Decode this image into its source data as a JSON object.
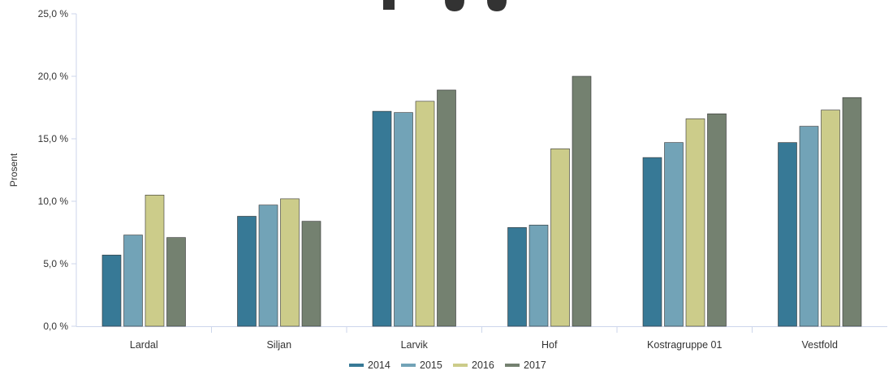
{
  "chart_data": {
    "type": "bar",
    "title": "",
    "ylabel": "Prosent",
    "xlabel": "",
    "ylim": [
      0,
      25
    ],
    "yticks": [
      "0,0 %",
      "5,0 %",
      "10,0 %",
      "15,0 %",
      "20,0 %",
      "25,0 %"
    ],
    "categories": [
      "Lardal",
      "Siljan",
      "Larvik",
      "Hof",
      "Kostragruppe 01",
      "Vestfold"
    ],
    "series": [
      {
        "name": "2014",
        "color": "#377996",
        "values": [
          5.7,
          8.8,
          17.2,
          7.9,
          13.5,
          14.7
        ]
      },
      {
        "name": "2015",
        "color": "#72a3b7",
        "values": [
          7.3,
          9.7,
          17.1,
          8.1,
          14.7,
          16.0
        ]
      },
      {
        "name": "2016",
        "color": "#cccc8a",
        "values": [
          10.5,
          10.2,
          18.0,
          14.2,
          16.6,
          17.3
        ]
      },
      {
        "name": "2017",
        "color": "#748170",
        "values": [
          7.1,
          8.4,
          18.9,
          20.0,
          17.0,
          18.3
        ]
      }
    ],
    "grid": false,
    "legend_position": "bottom-center"
  }
}
